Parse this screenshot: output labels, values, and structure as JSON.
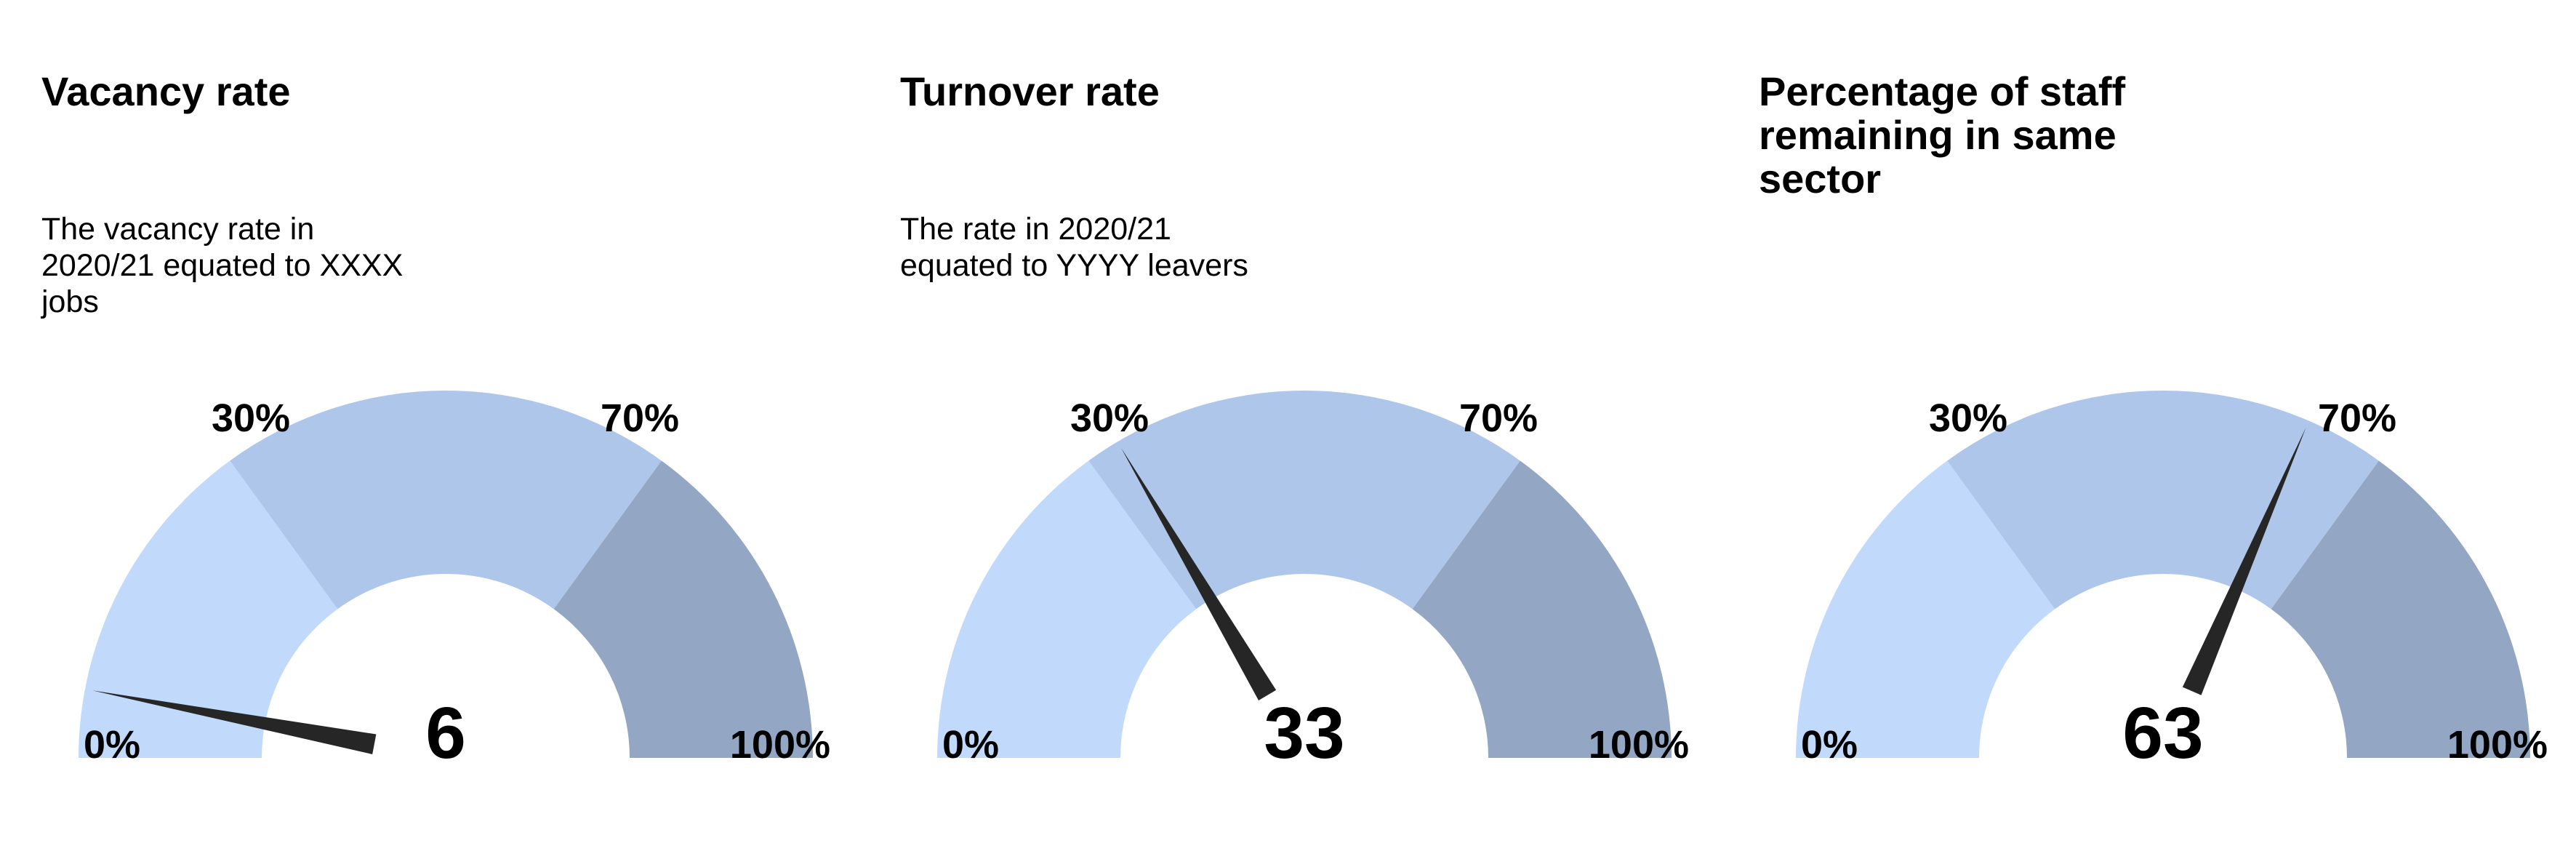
{
  "chart_data": [
    {
      "type": "gauge",
      "title": "Vacancy rate",
      "description": "The vacancy rate in 2020/21 equated to XXXX jobs",
      "value": 6,
      "value_label": "6",
      "range": [
        0,
        100
      ],
      "bands": [
        {
          "from": 0,
          "to": 30,
          "color": "#C1D9FB"
        },
        {
          "from": 30,
          "to": 70,
          "color": "#AFC6EB"
        },
        {
          "from": 70,
          "to": 100,
          "color": "#93A6C3"
        }
      ],
      "tick_labels": {
        "min": "0%",
        "low": "30%",
        "high": "70%",
        "max": "100%"
      }
    },
    {
      "type": "gauge",
      "title": "Turnover rate",
      "description": "The rate in 2020/21 equated to YYYY leavers",
      "value": 33,
      "value_label": "33",
      "range": [
        0,
        100
      ],
      "bands": [
        {
          "from": 0,
          "to": 30,
          "color": "#C1D9FB"
        },
        {
          "from": 30,
          "to": 70,
          "color": "#AFC6EB"
        },
        {
          "from": 70,
          "to": 100,
          "color": "#93A6C3"
        }
      ],
      "tick_labels": {
        "min": "0%",
        "low": "30%",
        "high": "70%",
        "max": "100%"
      }
    },
    {
      "type": "gauge",
      "title": "Percentage of staff remaining in same sector",
      "description": "",
      "value": 63,
      "value_label": "63",
      "range": [
        0,
        100
      ],
      "bands": [
        {
          "from": 0,
          "to": 30,
          "color": "#C1D9FB"
        },
        {
          "from": 30,
          "to": 70,
          "color": "#AFC6EB"
        },
        {
          "from": 70,
          "to": 100,
          "color": "#93A6C3"
        }
      ],
      "tick_labels": {
        "min": "0%",
        "low": "30%",
        "high": "70%",
        "max": "100%"
      }
    }
  ],
  "needle_color": "#262626"
}
